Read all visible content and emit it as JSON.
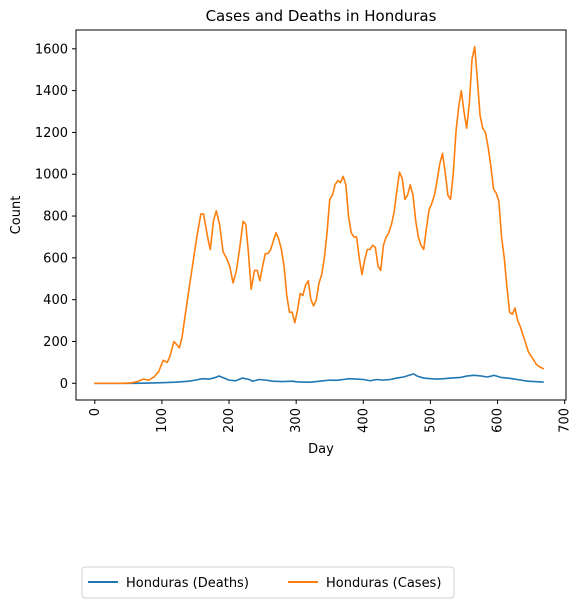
{
  "chart_data": {
    "type": "line",
    "title": "Cases and Deaths in Honduras",
    "xlabel": "Day",
    "ylabel": "Count",
    "xlim": [
      -28,
      702
    ],
    "ylim": [
      -80,
      1690
    ],
    "xticks": [
      0,
      100,
      200,
      300,
      400,
      500,
      600,
      700
    ],
    "yticks": [
      0,
      200,
      400,
      600,
      800,
      1000,
      1200,
      1400,
      1600
    ],
    "xtick_rotation": 90,
    "grid": false,
    "legend": {
      "placement": "bottom-outside",
      "columns": 2
    },
    "series": [
      {
        "name": "Honduras (Deaths)",
        "color": "#1f77b4",
        "points": [
          [
            0,
            0
          ],
          [
            20,
            0
          ],
          [
            40,
            0
          ],
          [
            60,
            0
          ],
          [
            80,
            1
          ],
          [
            100,
            3
          ],
          [
            120,
            5
          ],
          [
            140,
            10
          ],
          [
            150,
            15
          ],
          [
            160,
            22
          ],
          [
            170,
            20
          ],
          [
            180,
            28
          ],
          [
            185,
            35
          ],
          [
            190,
            28
          ],
          [
            200,
            15
          ],
          [
            210,
            12
          ],
          [
            220,
            25
          ],
          [
            230,
            18
          ],
          [
            235,
            10
          ],
          [
            245,
            18
          ],
          [
            255,
            15
          ],
          [
            265,
            10
          ],
          [
            280,
            8
          ],
          [
            295,
            10
          ],
          [
            300,
            7
          ],
          [
            310,
            6
          ],
          [
            320,
            5
          ],
          [
            330,
            8
          ],
          [
            340,
            12
          ],
          [
            350,
            15
          ],
          [
            360,
            14
          ],
          [
            370,
            18
          ],
          [
            380,
            22
          ],
          [
            390,
            20
          ],
          [
            400,
            18
          ],
          [
            410,
            12
          ],
          [
            420,
            18
          ],
          [
            430,
            15
          ],
          [
            440,
            18
          ],
          [
            450,
            25
          ],
          [
            460,
            30
          ],
          [
            470,
            40
          ],
          [
            475,
            45
          ],
          [
            480,
            35
          ],
          [
            490,
            25
          ],
          [
            500,
            22
          ],
          [
            510,
            20
          ],
          [
            520,
            22
          ],
          [
            530,
            25
          ],
          [
            545,
            28
          ],
          [
            555,
            35
          ],
          [
            565,
            38
          ],
          [
            575,
            35
          ],
          [
            585,
            30
          ],
          [
            595,
            38
          ],
          [
            605,
            28
          ],
          [
            615,
            25
          ],
          [
            625,
            20
          ],
          [
            635,
            15
          ],
          [
            645,
            10
          ],
          [
            655,
            8
          ],
          [
            662,
            7
          ],
          [
            668,
            6
          ]
        ]
      },
      {
        "name": "Honduras (Cases)",
        "color": "#ff7f0e",
        "points": [
          [
            0,
            0
          ],
          [
            20,
            0
          ],
          [
            40,
            0
          ],
          [
            55,
            2
          ],
          [
            65,
            10
          ],
          [
            72,
            20
          ],
          [
            80,
            15
          ],
          [
            88,
            30
          ],
          [
            95,
            55
          ],
          [
            102,
            110
          ],
          [
            108,
            100
          ],
          [
            112,
            130
          ],
          [
            118,
            200
          ],
          [
            122,
            185
          ],
          [
            126,
            170
          ],
          [
            130,
            220
          ],
          [
            138,
            400
          ],
          [
            145,
            550
          ],
          [
            152,
            700
          ],
          [
            158,
            810
          ],
          [
            162,
            810
          ],
          [
            168,
            700
          ],
          [
            172,
            640
          ],
          [
            177,
            780
          ],
          [
            181,
            825
          ],
          [
            186,
            760
          ],
          [
            191,
            630
          ],
          [
            196,
            600
          ],
          [
            201,
            560
          ],
          [
            206,
            480
          ],
          [
            211,
            540
          ],
          [
            216,
            650
          ],
          [
            221,
            775
          ],
          [
            225,
            760
          ],
          [
            229,
            620
          ],
          [
            233,
            450
          ],
          [
            238,
            540
          ],
          [
            242,
            540
          ],
          [
            246,
            490
          ],
          [
            250,
            560
          ],
          [
            254,
            620
          ],
          [
            258,
            620
          ],
          [
            262,
            640
          ],
          [
            266,
            680
          ],
          [
            270,
            720
          ],
          [
            274,
            690
          ],
          [
            278,
            640
          ],
          [
            282,
            560
          ],
          [
            286,
            420
          ],
          [
            290,
            340
          ],
          [
            294,
            340
          ],
          [
            298,
            290
          ],
          [
            302,
            350
          ],
          [
            306,
            430
          ],
          [
            310,
            420
          ],
          [
            314,
            470
          ],
          [
            318,
            490
          ],
          [
            322,
            400
          ],
          [
            326,
            370
          ],
          [
            330,
            400
          ],
          [
            334,
            480
          ],
          [
            338,
            520
          ],
          [
            342,
            600
          ],
          [
            346,
            720
          ],
          [
            350,
            880
          ],
          [
            354,
            900
          ],
          [
            358,
            950
          ],
          [
            362,
            970
          ],
          [
            366,
            960
          ],
          [
            370,
            990
          ],
          [
            374,
            950
          ],
          [
            378,
            800
          ],
          [
            382,
            720
          ],
          [
            386,
            700
          ],
          [
            390,
            700
          ],
          [
            394,
            600
          ],
          [
            398,
            520
          ],
          [
            402,
            590
          ],
          [
            406,
            640
          ],
          [
            410,
            640
          ],
          [
            414,
            660
          ],
          [
            418,
            650
          ],
          [
            422,
            560
          ],
          [
            426,
            540
          ],
          [
            430,
            660
          ],
          [
            434,
            700
          ],
          [
            438,
            720
          ],
          [
            442,
            760
          ],
          [
            446,
            820
          ],
          [
            450,
            920
          ],
          [
            454,
            1010
          ],
          [
            458,
            980
          ],
          [
            462,
            880
          ],
          [
            466,
            900
          ],
          [
            470,
            950
          ],
          [
            474,
            900
          ],
          [
            478,
            780
          ],
          [
            482,
            700
          ],
          [
            486,
            660
          ],
          [
            490,
            640
          ],
          [
            494,
            740
          ],
          [
            498,
            830
          ],
          [
            502,
            860
          ],
          [
            506,
            900
          ],
          [
            510,
            970
          ],
          [
            514,
            1050
          ],
          [
            518,
            1100
          ],
          [
            522,
            1010
          ],
          [
            526,
            900
          ],
          [
            530,
            880
          ],
          [
            534,
            1000
          ],
          [
            538,
            1200
          ],
          [
            542,
            1320
          ],
          [
            546,
            1400
          ],
          [
            550,
            1300
          ],
          [
            554,
            1220
          ],
          [
            558,
            1340
          ],
          [
            562,
            1550
          ],
          [
            566,
            1610
          ],
          [
            570,
            1450
          ],
          [
            574,
            1280
          ],
          [
            578,
            1220
          ],
          [
            582,
            1200
          ],
          [
            586,
            1130
          ],
          [
            590,
            1040
          ],
          [
            594,
            930
          ],
          [
            598,
            910
          ],
          [
            602,
            870
          ],
          [
            606,
            700
          ],
          [
            610,
            600
          ],
          [
            614,
            460
          ],
          [
            618,
            340
          ],
          [
            622,
            330
          ],
          [
            626,
            360
          ],
          [
            630,
            300
          ],
          [
            634,
            270
          ],
          [
            638,
            230
          ],
          [
            642,
            190
          ],
          [
            646,
            150
          ],
          [
            650,
            130
          ],
          [
            654,
            110
          ],
          [
            658,
            90
          ],
          [
            662,
            80
          ],
          [
            668,
            70
          ]
        ]
      }
    ]
  }
}
